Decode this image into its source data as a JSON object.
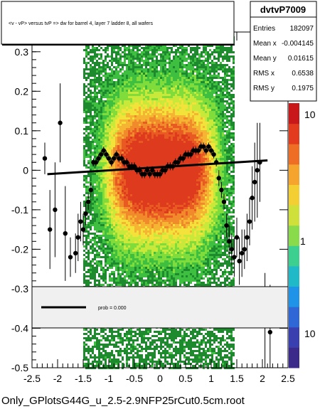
{
  "title": "<v - vP>       versus  tvP =>  dw for barrel 4, layer 7 ladder 8, all wafers",
  "footer": "Only_GPlotsG44G_u_2.5-2.9NFP25rCut0.5cm.root",
  "stats": {
    "name": "dvtvP7009",
    "rows": [
      {
        "label": "Entries",
        "value": "182097"
      },
      {
        "label": "Mean x",
        "value": "-0.004145"
      },
      {
        "label": "Mean y",
        "value": "0.01615"
      },
      {
        "label": "RMS x",
        "value": "0.6538"
      },
      {
        "label": "RMS y",
        "value": "0.1975"
      }
    ]
  },
  "legend": {
    "label": "prob = 0.000"
  },
  "colorbar": {
    "labels": [
      "10",
      "1",
      "10"
    ]
  },
  "chart_data": {
    "type": "heatmap",
    "xlim": [
      -2.5,
      2.5
    ],
    "ylim": [
      -0.5,
      0.35
    ],
    "x_ticks": [
      "-2.5",
      "-2",
      "-1.5",
      "-1",
      "-0.5",
      "0",
      "0.5",
      "1",
      "1.5",
      "2",
      "2.5"
    ],
    "x_tick_values": [
      -2.5,
      -2,
      -1.5,
      -1,
      -0.5,
      0,
      0.5,
      1,
      1.5,
      2,
      2.5
    ],
    "y_ticks": [
      "-0.5",
      "-0.4",
      "-0.3",
      "-0.2",
      "-0.1",
      "0",
      "0.1",
      "0.2",
      "0.3"
    ],
    "y_tick_values": [
      -0.5,
      -0.4,
      -0.3,
      -0.2,
      -0.1,
      0,
      0.1,
      0.2,
      0.3
    ],
    "profile": {
      "x": [
        -2.25,
        -2.15,
        -2.05,
        -1.95,
        -1.85,
        -1.75,
        -1.65,
        -1.6,
        -1.55,
        -1.5,
        -1.45,
        -1.4,
        -1.35,
        -1.3,
        -1.25,
        -1.2,
        -1.15,
        -1.1,
        -1.05,
        -1.0,
        -0.95,
        -0.9,
        -0.85,
        -0.8,
        -0.75,
        -0.7,
        -0.65,
        -0.6,
        -0.55,
        -0.5,
        -0.45,
        -0.4,
        -0.35,
        -0.3,
        -0.25,
        -0.2,
        -0.15,
        -0.1,
        -0.05,
        0.0,
        0.05,
        0.1,
        0.15,
        0.2,
        0.25,
        0.3,
        0.35,
        0.4,
        0.45,
        0.5,
        0.55,
        0.6,
        0.65,
        0.7,
        0.75,
        0.8,
        0.85,
        0.9,
        0.95,
        1.0,
        1.05,
        1.1,
        1.15,
        1.2,
        1.25,
        1.3,
        1.35,
        1.4,
        1.45,
        1.5,
        1.55,
        1.6,
        1.65,
        1.7,
        1.75,
        1.8,
        1.85,
        1.9,
        1.95,
        2.05,
        2.15,
        2.25
      ],
      "y": [
        0.03,
        -0.15,
        -0.1,
        0.12,
        -0.16,
        -0.22,
        -0.21,
        -0.17,
        -0.13,
        -0.15,
        -0.11,
        -0.08,
        -0.05,
        0.02,
        0.02,
        0.03,
        0.04,
        0.05,
        0.04,
        0.03,
        0.02,
        0.03,
        0.04,
        0.03,
        0.03,
        0.02,
        0.02,
        0.01,
        0.01,
        0.01,
        0.0,
        0.0,
        -0.01,
        -0.01,
        0.0,
        -0.01,
        0.0,
        -0.01,
        -0.01,
        -0.01,
        0.0,
        0.0,
        0.01,
        0.01,
        0.01,
        0.02,
        0.02,
        0.03,
        0.03,
        0.04,
        0.04,
        0.04,
        0.05,
        0.05,
        0.05,
        0.06,
        0.06,
        0.05,
        0.06,
        0.05,
        0.04,
        0.02,
        -0.02,
        -0.05,
        -0.08,
        -0.14,
        -0.18,
        -0.2,
        -0.22,
        -0.17,
        -0.23,
        -0.21,
        -0.2,
        -0.17,
        -0.13,
        -0.07,
        -0.03,
        0.0,
        0.02,
        -0.38,
        -0.41,
        0.35
      ],
      "err": [
        0.04,
        0.1,
        0.12,
        0.1,
        0.12,
        0.05,
        0.05,
        0.06,
        0.05,
        0.04,
        0.03,
        0.02,
        0.02,
        0.01,
        0.01,
        0.01,
        0.01,
        0.01,
        0.01,
        0.01,
        0.01,
        0.01,
        0.01,
        0.01,
        0.01,
        0.01,
        0.01,
        0.01,
        0.01,
        0.01,
        0.01,
        0.01,
        0.01,
        0.01,
        0.01,
        0.01,
        0.01,
        0.01,
        0.01,
        0.01,
        0.01,
        0.01,
        0.01,
        0.01,
        0.01,
        0.01,
        0.01,
        0.01,
        0.01,
        0.01,
        0.01,
        0.01,
        0.01,
        0.01,
        0.01,
        0.01,
        0.01,
        0.01,
        0.01,
        0.01,
        0.01,
        0.01,
        0.02,
        0.02,
        0.02,
        0.03,
        0.04,
        0.04,
        0.05,
        0.05,
        0.06,
        0.06,
        0.05,
        0.06,
        0.06,
        0.08,
        0.1,
        0.12,
        0.1,
        0.12,
        0.12,
        0.1
      ]
    },
    "fit_line": {
      "x": [
        -2.2,
        2.1
      ],
      "y": [
        -0.01,
        0.025
      ]
    }
  }
}
